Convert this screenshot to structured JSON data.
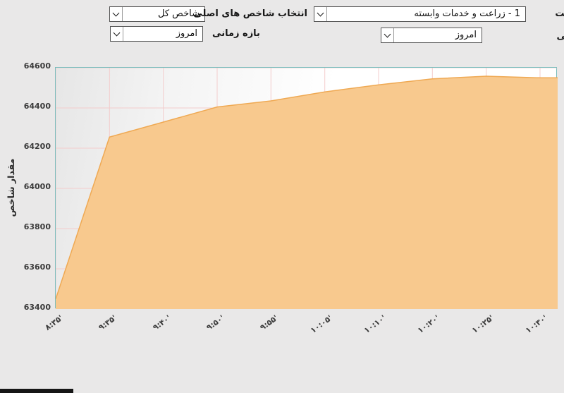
{
  "controls": {
    "index_label": "انتخاب شاخص های اصلی",
    "index_select": {
      "value": "شاخص کل"
    },
    "time_label": "بازه زمانی",
    "time_select": {
      "value": "امروز"
    },
    "industry_select": {
      "value": "1 - زراعت و خدمات وابسته"
    },
    "industry_time_select": {
      "value": "امروز"
    },
    "industry_label_fragment": "عت",
    "time_label_fragment": "انی"
  },
  "chart_data": {
    "type": "area",
    "title": "",
    "ylabel": "مقدار شاخص",
    "xlabel": "",
    "x": [
      "۸:۳۵'",
      "۹:۳۵'",
      "۹:۴۰'",
      "۹:۵۰'",
      "۹:۵۵'",
      "۱۰:۰۵'",
      "۱۰:۱۰'",
      "۱۰:۲۰'",
      "۱۰:۲۵'",
      "۱۰:۳۰'"
    ],
    "values": [
      63450,
      64255,
      64330,
      64405,
      64435,
      64480,
      64515,
      64545,
      64558,
      64550
    ],
    "yticks": [
      63400,
      63600,
      63800,
      64000,
      64200,
      64400,
      64600
    ],
    "ylim": [
      63400,
      64600
    ],
    "grid": true,
    "legend": false,
    "colors": {
      "fill": "#f8c98e",
      "line": "#efa953",
      "grid": "#f3cccc",
      "plot_border": "#7abdbd",
      "tick_text": "#3b3b3b"
    }
  }
}
